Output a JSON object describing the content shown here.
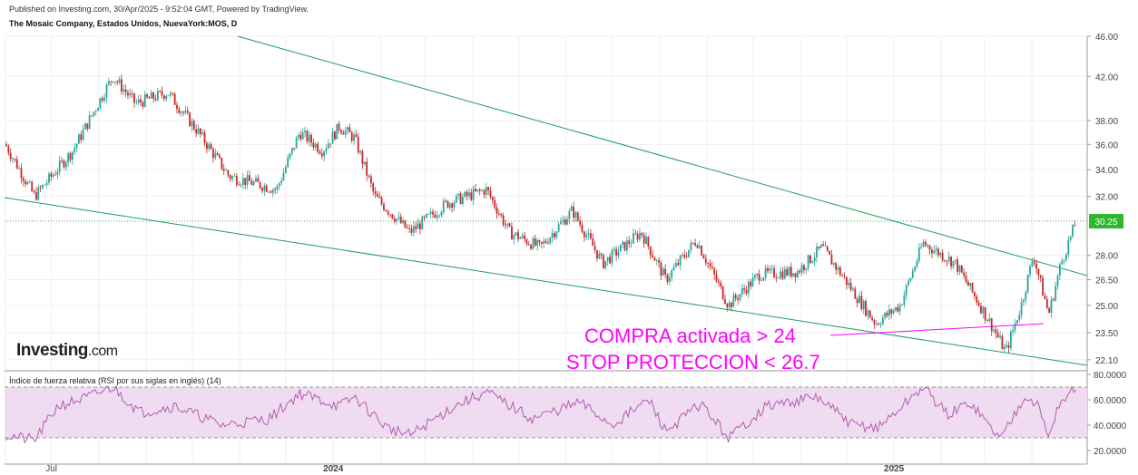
{
  "header": {
    "published": "Published on Investing.com, 30/Apr/2025 - 9:52:04 GMT, Powered by TradingView.",
    "instrument": "The Mosaic Company, Estados Unidos, NuevaYork:MOS, D"
  },
  "logo": {
    "name": "Investing",
    "domain": ".com"
  },
  "annotations": {
    "buy": "COMPRA activada > 24",
    "stop": "STOP PROTECCION < 26.7"
  },
  "rsi": {
    "title": "Índice de fuerza relativa (RSI por sus siglas en inglés) (14)"
  },
  "colors": {
    "up": "#26a69a",
    "down": "#c62828",
    "trendline": "#1b9e60",
    "support": "#ff00ff",
    "price_line": "#2db82d",
    "rsi_line": "#b05cb0",
    "rsi_band": "#f0dcf0",
    "annotation": "#ff00ff"
  },
  "chart_data": [
    {
      "type": "candlestick",
      "title": "The Mosaic Company, Estados Unidos, NuevaYork:MOS, D",
      "x_ticks": [
        "Jul",
        "2024",
        "2025"
      ],
      "y_scale": "log",
      "y_ticks": [
        "46.00",
        "42.00",
        "38.00",
        "36.00",
        "34.00",
        "32.00",
        "28.00",
        "26.50",
        "25.00",
        "23.50",
        "22.10"
      ],
      "ylim": [
        21.6,
        46
      ],
      "current_price": "30.25",
      "price_path": [
        {
          "date": "2023-06-01",
          "price": 36.0
        },
        {
          "date": "2023-06-20",
          "price": 32.0
        },
        {
          "date": "2023-07-15",
          "price": 35.5
        },
        {
          "date": "2023-08-10",
          "price": 42.0
        },
        {
          "date": "2023-08-25",
          "price": 39.5
        },
        {
          "date": "2023-09-15",
          "price": 40.5
        },
        {
          "date": "2023-10-05",
          "price": 37.0
        },
        {
          "date": "2023-10-25",
          "price": 33.5
        },
        {
          "date": "2023-11-25",
          "price": 32.5
        },
        {
          "date": "2023-12-10",
          "price": 37.0
        },
        {
          "date": "2023-12-25",
          "price": 35.5
        },
        {
          "date": "2024-01-05",
          "price": 37.5
        },
        {
          "date": "2024-01-15",
          "price": 36.5
        },
        {
          "date": "2024-01-28",
          "price": 32.0
        },
        {
          "date": "2024-02-20",
          "price": 29.5
        },
        {
          "date": "2024-03-15",
          "price": 31.5
        },
        {
          "date": "2024-04-10",
          "price": 32.5
        },
        {
          "date": "2024-04-25",
          "price": 29.5
        },
        {
          "date": "2024-05-15",
          "price": 28.5
        },
        {
          "date": "2024-06-05",
          "price": 31.0
        },
        {
          "date": "2024-06-25",
          "price": 27.5
        },
        {
          "date": "2024-07-20",
          "price": 29.5
        },
        {
          "date": "2024-08-05",
          "price": 26.5
        },
        {
          "date": "2024-08-25",
          "price": 29.0
        },
        {
          "date": "2024-09-15",
          "price": 25.0
        },
        {
          "date": "2024-10-05",
          "price": 26.8
        },
        {
          "date": "2024-10-30",
          "price": 27.0
        },
        {
          "date": "2024-11-15",
          "price": 28.5
        },
        {
          "date": "2024-11-30",
          "price": 26.5
        },
        {
          "date": "2024-12-20",
          "price": 24.0
        },
        {
          "date": "2025-01-05",
          "price": 25.0
        },
        {
          "date": "2025-01-20",
          "price": 28.8
        },
        {
          "date": "2025-02-10",
          "price": 27.5
        },
        {
          "date": "2025-03-05",
          "price": 24.0
        },
        {
          "date": "2025-03-15",
          "price": 22.5
        },
        {
          "date": "2025-03-25",
          "price": 25.0
        },
        {
          "date": "2025-04-02",
          "price": 28.0
        },
        {
          "date": "2025-04-12",
          "price": 24.5
        },
        {
          "date": "2025-04-20",
          "price": 27.5
        },
        {
          "date": "2025-04-30",
          "price": 30.25
        }
      ]
    },
    {
      "type": "line",
      "title": "Índice de fuerza relativa (RSI por sus siglas en inglés) (14)",
      "y_ticks": [
        "80.0000",
        "60.0000",
        "40.0000",
        "20.0000"
      ],
      "ylim": [
        20,
        80
      ],
      "band": [
        30,
        70
      ],
      "rsi_path": [
        {
          "date": "2023-06-01",
          "rsi": 32
        },
        {
          "date": "2023-06-20",
          "rsi": 28
        },
        {
          "date": "2023-07-05",
          "rsi": 55
        },
        {
          "date": "2023-07-25",
          "rsi": 62
        },
        {
          "date": "2023-08-10",
          "rsi": 70
        },
        {
          "date": "2023-08-28",
          "rsi": 50
        },
        {
          "date": "2023-09-20",
          "rsi": 55
        },
        {
          "date": "2023-10-20",
          "rsi": 40
        },
        {
          "date": "2023-11-20",
          "rsi": 45
        },
        {
          "date": "2023-12-10",
          "rsi": 65
        },
        {
          "date": "2024-01-05",
          "rsi": 55
        },
        {
          "date": "2024-01-15",
          "rsi": 62
        },
        {
          "date": "2024-02-05",
          "rsi": 38
        },
        {
          "date": "2024-02-20",
          "rsi": 32
        },
        {
          "date": "2024-03-20",
          "rsi": 55
        },
        {
          "date": "2024-04-10",
          "rsi": 66
        },
        {
          "date": "2024-05-10",
          "rsi": 45
        },
        {
          "date": "2024-06-10",
          "rsi": 58
        },
        {
          "date": "2024-07-01",
          "rsi": 40
        },
        {
          "date": "2024-07-25",
          "rsi": 60
        },
        {
          "date": "2024-08-05",
          "rsi": 35
        },
        {
          "date": "2024-08-28",
          "rsi": 57
        },
        {
          "date": "2024-09-15",
          "rsi": 30
        },
        {
          "date": "2024-10-10",
          "rsi": 55
        },
        {
          "date": "2024-11-12",
          "rsi": 62
        },
        {
          "date": "2024-12-05",
          "rsi": 40
        },
        {
          "date": "2024-12-22",
          "rsi": 38
        },
        {
          "date": "2025-01-20",
          "rsi": 70
        },
        {
          "date": "2025-02-05",
          "rsi": 48
        },
        {
          "date": "2025-02-20",
          "rsi": 58
        },
        {
          "date": "2025-03-05",
          "rsi": 38
        },
        {
          "date": "2025-03-12",
          "rsi": 30
        },
        {
          "date": "2025-03-28",
          "rsi": 65
        },
        {
          "date": "2025-04-05",
          "rsi": 55
        },
        {
          "date": "2025-04-12",
          "rsi": 30
        },
        {
          "date": "2025-04-18",
          "rsi": 55
        },
        {
          "date": "2025-04-30",
          "rsi": 70
        }
      ]
    }
  ]
}
